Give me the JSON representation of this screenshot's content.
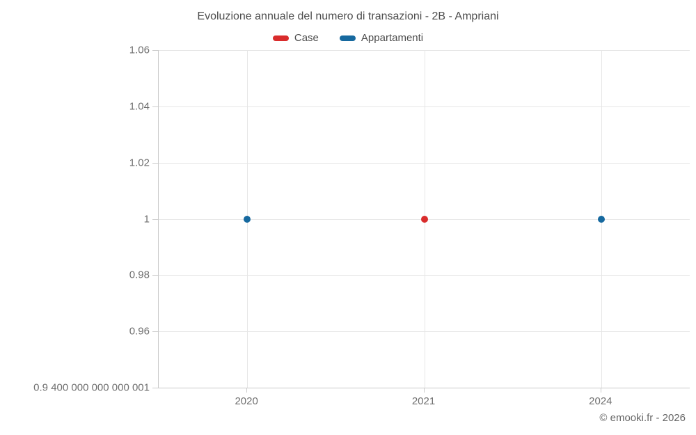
{
  "title": "Evoluzione annuale del numero di transazioni - 2B - Ampriani",
  "credits": "© emooki.fr - 2026",
  "colors": {
    "case_red": "#d92c2c",
    "appartamenti_blue": "#16699f",
    "gridline": "#e6e6e6",
    "axis_line": "#c9c9c9",
    "title_text": "#4d4d4d",
    "axis_label_text": "#6f6f6f"
  },
  "chart_data": {
    "type": "scatter",
    "title": "Evoluzione annuale del numero di transazioni - 2B - Ampriani",
    "xlabel": "",
    "ylabel": "",
    "grid": true,
    "legend_position": "top",
    "categories": [
      "2020",
      "2021",
      "2024"
    ],
    "series": [
      {
        "name": "Case",
        "color": "#d92c2c",
        "values": [
          null,
          1,
          null
        ]
      },
      {
        "name": "Appartamenti",
        "color": "#16699f",
        "values": [
          1,
          null,
          1
        ]
      }
    ],
    "y_axis": {
      "min": 0.94,
      "max": 1.06,
      "tick_interval": 0.02,
      "ticks": [
        {
          "value": 1.06,
          "label": "1.06"
        },
        {
          "value": 1.04,
          "label": "1.04"
        },
        {
          "value": 1.02,
          "label": "1.02"
        },
        {
          "value": 1.0,
          "label": "1"
        },
        {
          "value": 0.98,
          "label": "0.98"
        },
        {
          "value": 0.96,
          "label": "0.96"
        },
        {
          "value": 0.94,
          "label": "0.9 400 000 000 000 001"
        }
      ]
    }
  }
}
